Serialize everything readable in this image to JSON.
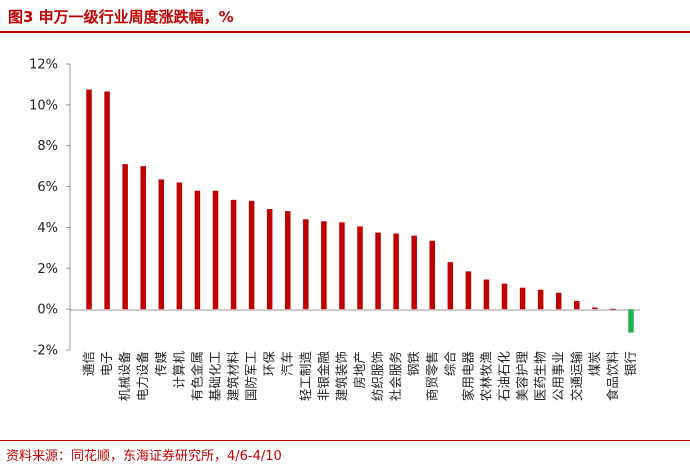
{
  "figure_title": "图3  申万一级行业周度涨跌幅，%",
  "source": "资料来源：同花顺，东海证券研究所，4/6-4/10",
  "colors": {
    "accent": "#c00000",
    "positive": "#c00000",
    "negative": "#22b04b",
    "axis": "#999999"
  },
  "chart_data": {
    "type": "bar",
    "title": "",
    "xlabel": "",
    "ylabel": "",
    "ylim": [
      -2,
      12
    ],
    "yticks": [
      -2,
      0,
      2,
      4,
      6,
      8,
      10,
      12
    ],
    "ytick_labels": [
      "-2%",
      "0%",
      "2%",
      "4%",
      "6%",
      "8%",
      "10%",
      "12%"
    ],
    "grid": false,
    "legend": "none",
    "categories": [
      "通信",
      "电子",
      "机械设备",
      "电力设备",
      "传媒",
      "计算机",
      "有色金属",
      "基础化工",
      "建筑材料",
      "国防军工",
      "环保",
      "汽车",
      "轻工制造",
      "非银金融",
      "建筑装饰",
      "房地产",
      "纺织服饰",
      "社会服务",
      "钢铁",
      "商贸零售",
      "综合",
      "家用电器",
      "农林牧渔",
      "石油石化",
      "美容护理",
      "医药生物",
      "公用事业",
      "交通运输",
      "煤炭",
      "食品饮料",
      "银行"
    ],
    "values": [
      10.75,
      10.65,
      7.1,
      7.0,
      6.35,
      6.2,
      5.8,
      5.8,
      5.35,
      5.3,
      4.9,
      4.8,
      4.4,
      4.3,
      4.25,
      4.05,
      3.75,
      3.7,
      3.6,
      3.35,
      2.3,
      1.85,
      1.45,
      1.25,
      1.05,
      0.95,
      0.8,
      0.4,
      0.08,
      0.02,
      -1.15
    ]
  }
}
